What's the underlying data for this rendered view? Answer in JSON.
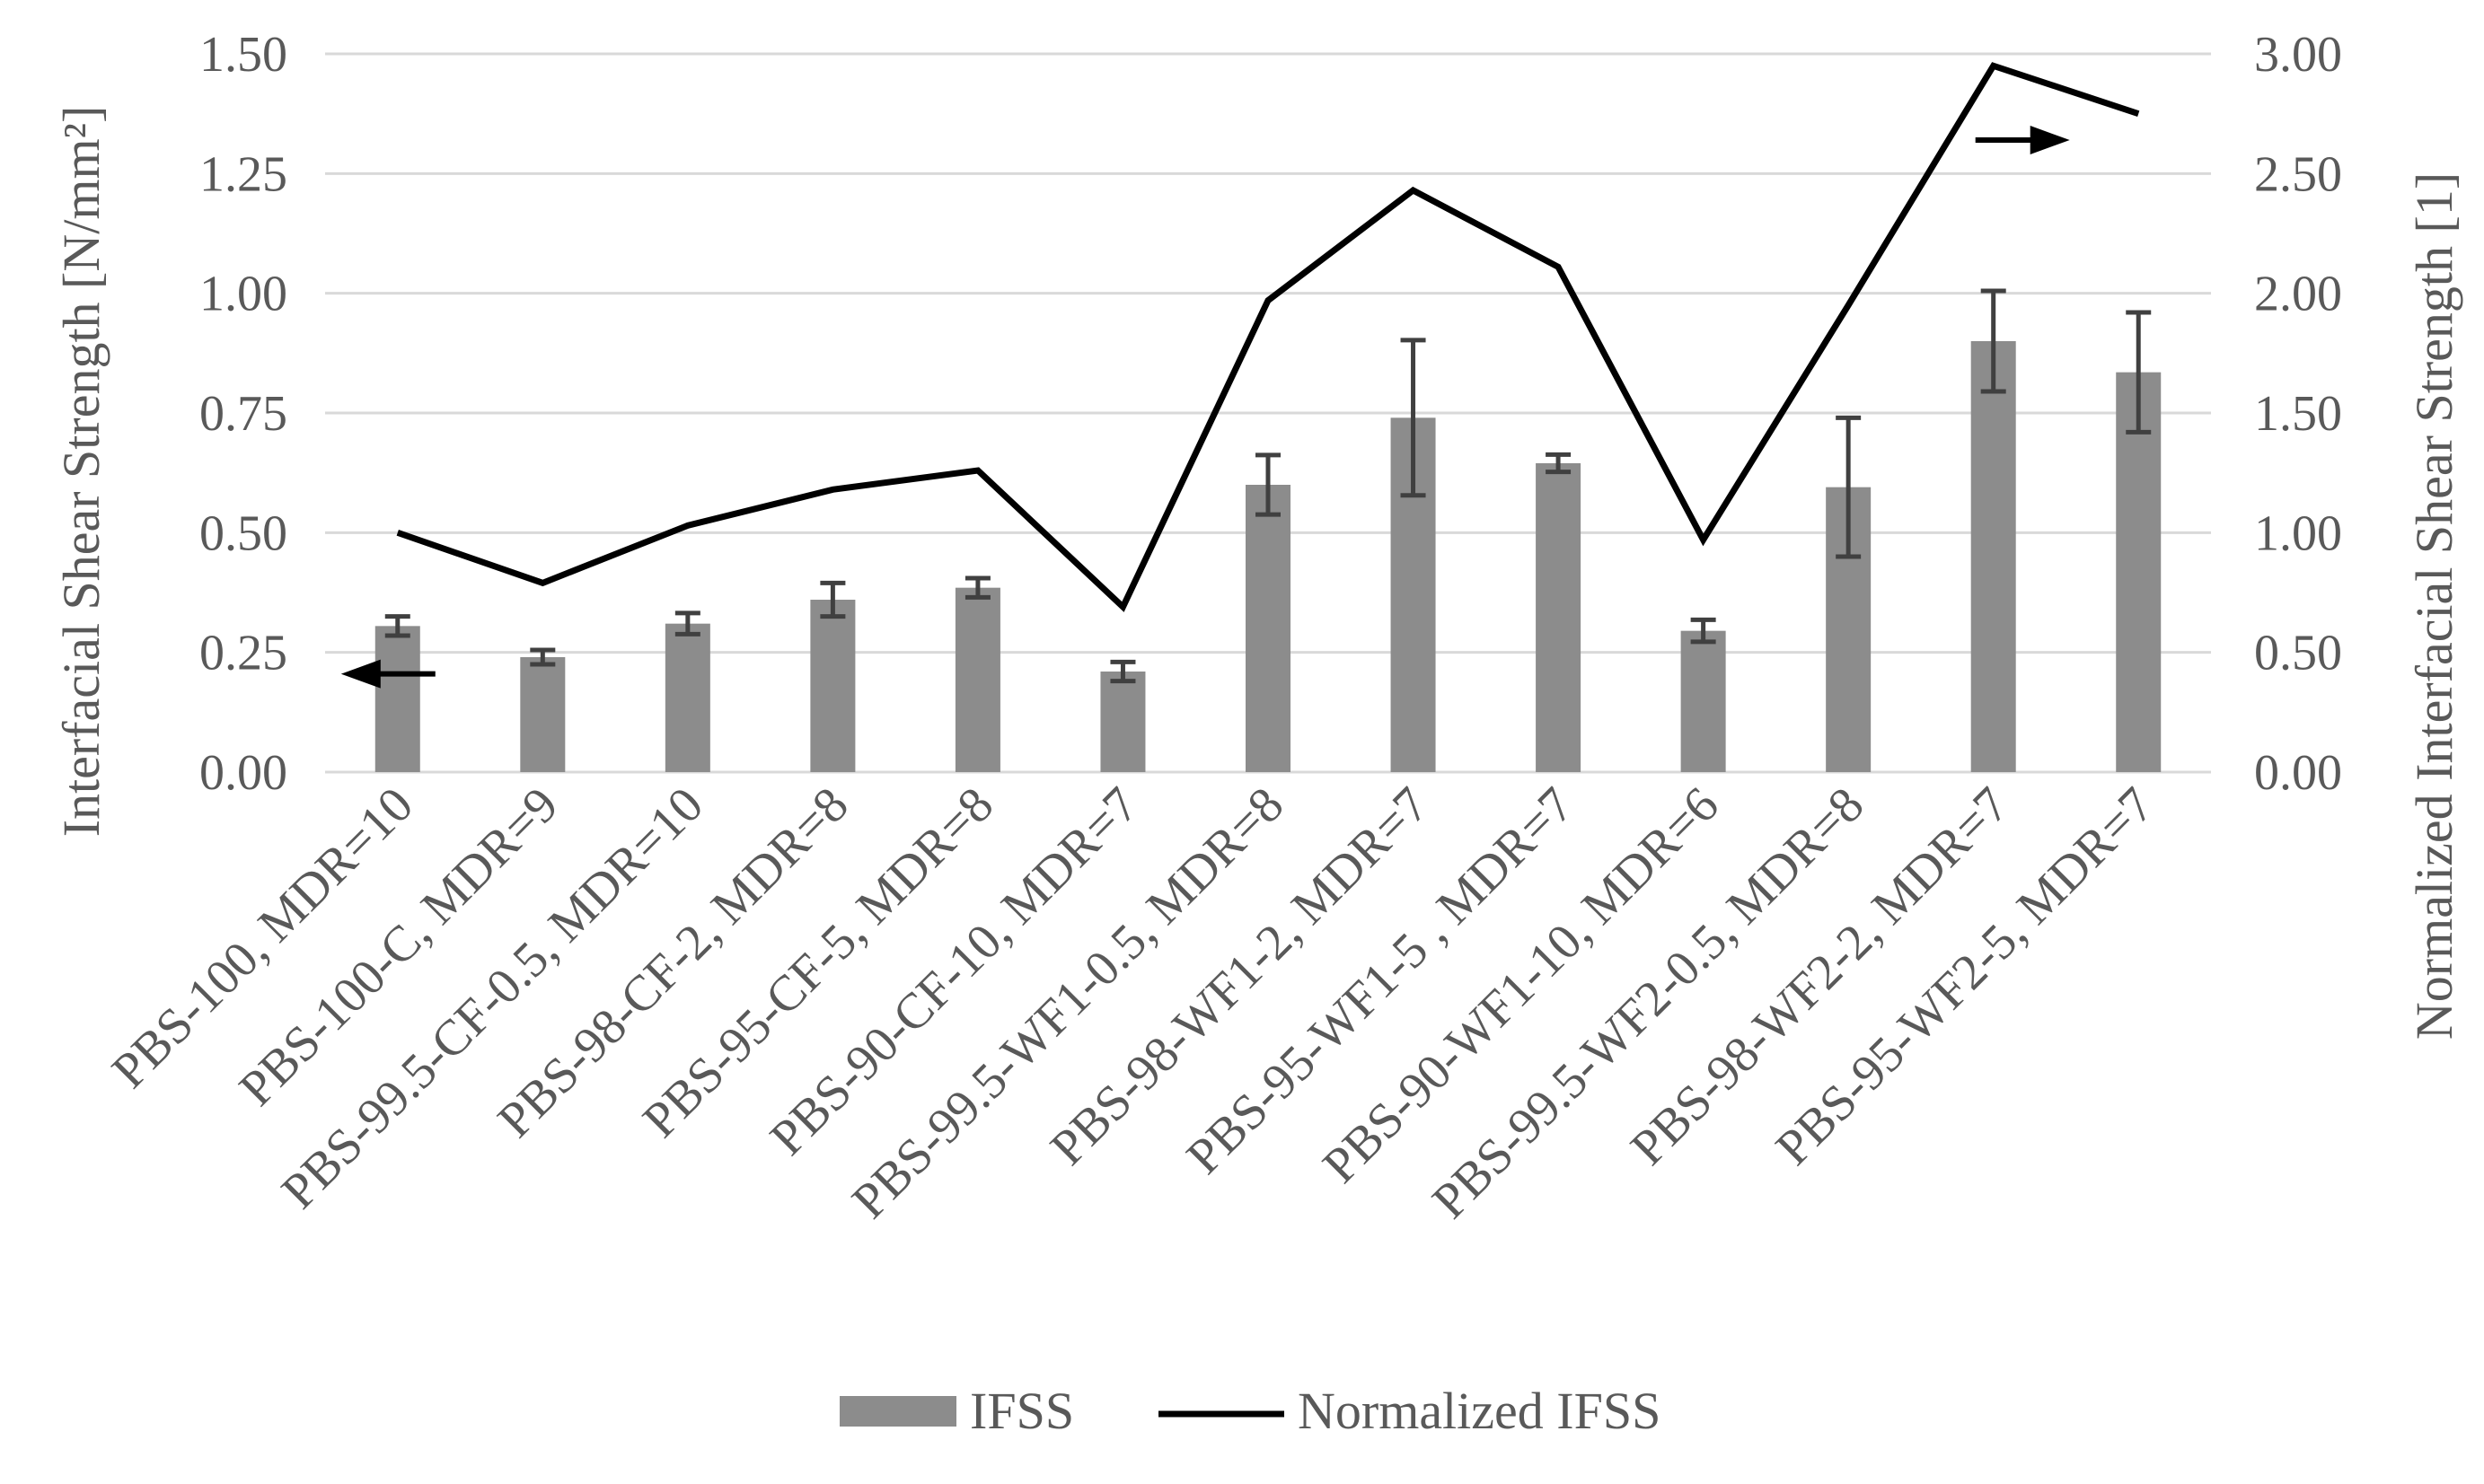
{
  "colors": {
    "bar": "#8c8c8c",
    "error_bar": "#404040",
    "line": "#000000",
    "grid": "#d9d9d9",
    "text": "#595959",
    "arrow": "#000000"
  },
  "chart_data": {
    "type": "bar",
    "title": "",
    "categories": [
      "PBS-100, MDR=10",
      "PBS-100-C, MDR=9",
      "PBS-99.5-CF-0.5, MDR=10",
      "PBS-98-CF-2, MDR=8",
      "PBS-95-CF-5, MDR=8",
      "PBS-90-CF-10, MDR=7",
      "PBS-99.5-WF1-0.5, MDR=8",
      "PBS-98-WF1-2, MDR=7",
      "PBS-95-WF1-5 , MDR=7",
      "PBS-90-WF1-10, MDR=6",
      "PBS-99.5-WF2-0.5, MDR=8",
      "PBS-98-WF2-2, MDR=7",
      "PBS-95-WF2-5, MDR=7"
    ],
    "series": [
      {
        "name": "IFSS",
        "kind": "bar",
        "axis": "left",
        "values": [
          0.305,
          0.24,
          0.31,
          0.36,
          0.385,
          0.21,
          0.6,
          0.74,
          0.645,
          0.295,
          0.595,
          0.9,
          0.835
        ],
        "error": [
          0.02,
          0.015,
          0.022,
          0.035,
          0.02,
          0.02,
          0.062,
          0.162,
          0.018,
          0.023,
          0.145,
          0.105,
          0.125
        ]
      },
      {
        "name": "Normalized IFSS",
        "kind": "line",
        "axis": "right",
        "values": [
          1.0,
          0.79,
          1.03,
          1.18,
          1.26,
          0.69,
          1.97,
          2.43,
          2.11,
          0.97,
          1.95,
          2.95,
          2.75
        ]
      }
    ],
    "ylabel": "Interfacial Shear Strength [N/mm²]",
    "y2label": "Normalized Interfacial Shear Strength [1]",
    "xlabel": "",
    "ylim": [
      0,
      1.5
    ],
    "y2lim": [
      0,
      3.0
    ],
    "yticks": [
      "0.00",
      "0.25",
      "0.50",
      "0.75",
      "1.00",
      "1.25",
      "1.50"
    ],
    "y2ticks": [
      "0.00",
      "0.50",
      "1.00",
      "1.50",
      "2.00",
      "2.50",
      "3.00"
    ],
    "grid": true,
    "legend_position": "bottom-center",
    "annotations": [
      {
        "kind": "arrow",
        "direction": "left",
        "axis": "left",
        "category_index": 0,
        "y": 0.205
      },
      {
        "kind": "arrow",
        "direction": "right",
        "axis": "right",
        "category_index": 11,
        "y": 2.64
      }
    ]
  }
}
